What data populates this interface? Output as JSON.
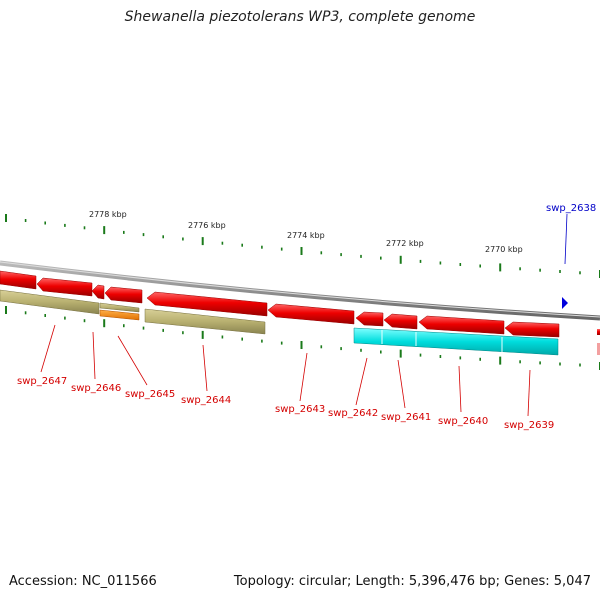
{
  "title": "Shewanella piezotolerans WP3, complete genome",
  "accession": "Accession: NC_011566",
  "topology": "Topology: circular; Length: 5,396,476 bp; Genes: 5,047",
  "colors": {
    "backbone": "#888888",
    "gene_red": "#ee0000",
    "tan": "#b8b070",
    "orange": "#ff8c00",
    "cyan": "#00dddd",
    "tick": "#1a7a1a",
    "label_red": "#d40000",
    "label_blue": "#0000c8"
  },
  "scale_labels": [
    "2778 kbp",
    "2776 kbp",
    "2774 kbp",
    "2772 kbp",
    "2770 kbp"
  ],
  "gene_labels": {
    "swp_2638": "swp_2638",
    "swp_2639": "swp_2639",
    "swp_2640": "swp_2640",
    "swp_2641": "swp_2641",
    "swp_2642": "swp_2642",
    "swp_2643": "swp_2643",
    "swp_2644": "swp_2644",
    "swp_2645": "swp_2645",
    "swp_2646": "swp_2646",
    "swp_2647": "swp_2647"
  }
}
